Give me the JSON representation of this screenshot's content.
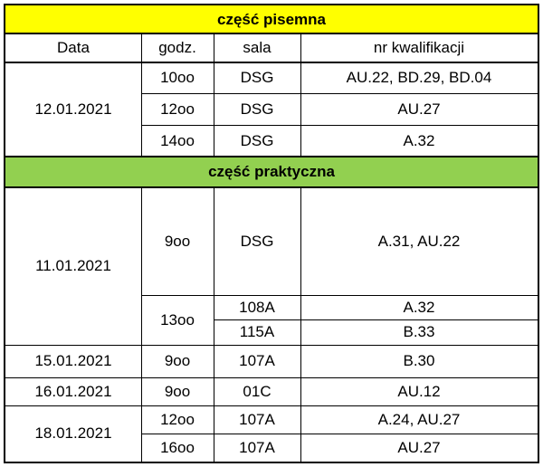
{
  "written": {
    "title": "część pisemna",
    "color": "#ffff00",
    "headers": {
      "date": "Data",
      "hour": "godz.",
      "room": "sala",
      "qual": "nr kwalifikacji"
    },
    "date": "12.01.2021",
    "rows": [
      {
        "hour": "10oo",
        "room": "DSG",
        "qual": "AU.22, BD.29, BD.04"
      },
      {
        "hour": "12oo",
        "room": "DSG",
        "qual": "AU.27"
      },
      {
        "hour": "14oo",
        "room": "DSG",
        "qual": "A.32"
      }
    ]
  },
  "practical": {
    "title": "część praktyczna",
    "color": "#92d050",
    "groups": [
      {
        "date": "11.01.2021",
        "hours": [
          {
            "hour": "9oo",
            "rooms": [
              {
                "room": "DSG",
                "qual": "A.31, AU.22"
              }
            ]
          },
          {
            "hour": "13oo",
            "rooms": [
              {
                "room": "108A",
                "qual": "A.32"
              },
              {
                "room": "115A",
                "qual": "B.33"
              }
            ]
          }
        ]
      },
      {
        "date": "15.01.2021",
        "hours": [
          {
            "hour": "9oo",
            "rooms": [
              {
                "room": "107A",
                "qual": "B.30"
              }
            ]
          }
        ]
      },
      {
        "date": "16.01.2021",
        "hours": [
          {
            "hour": "9oo",
            "rooms": [
              {
                "room": "01C",
                "qual": "AU.12"
              }
            ]
          }
        ]
      },
      {
        "date": "18.01.2021",
        "hours": [
          {
            "hour": "12oo",
            "rooms": [
              {
                "room": "107A",
                "qual": "A.24, AU.27"
              }
            ]
          },
          {
            "hour": "16oo",
            "rooms": [
              {
                "room": "107A",
                "qual": "AU.27"
              }
            ]
          }
        ]
      }
    ]
  }
}
